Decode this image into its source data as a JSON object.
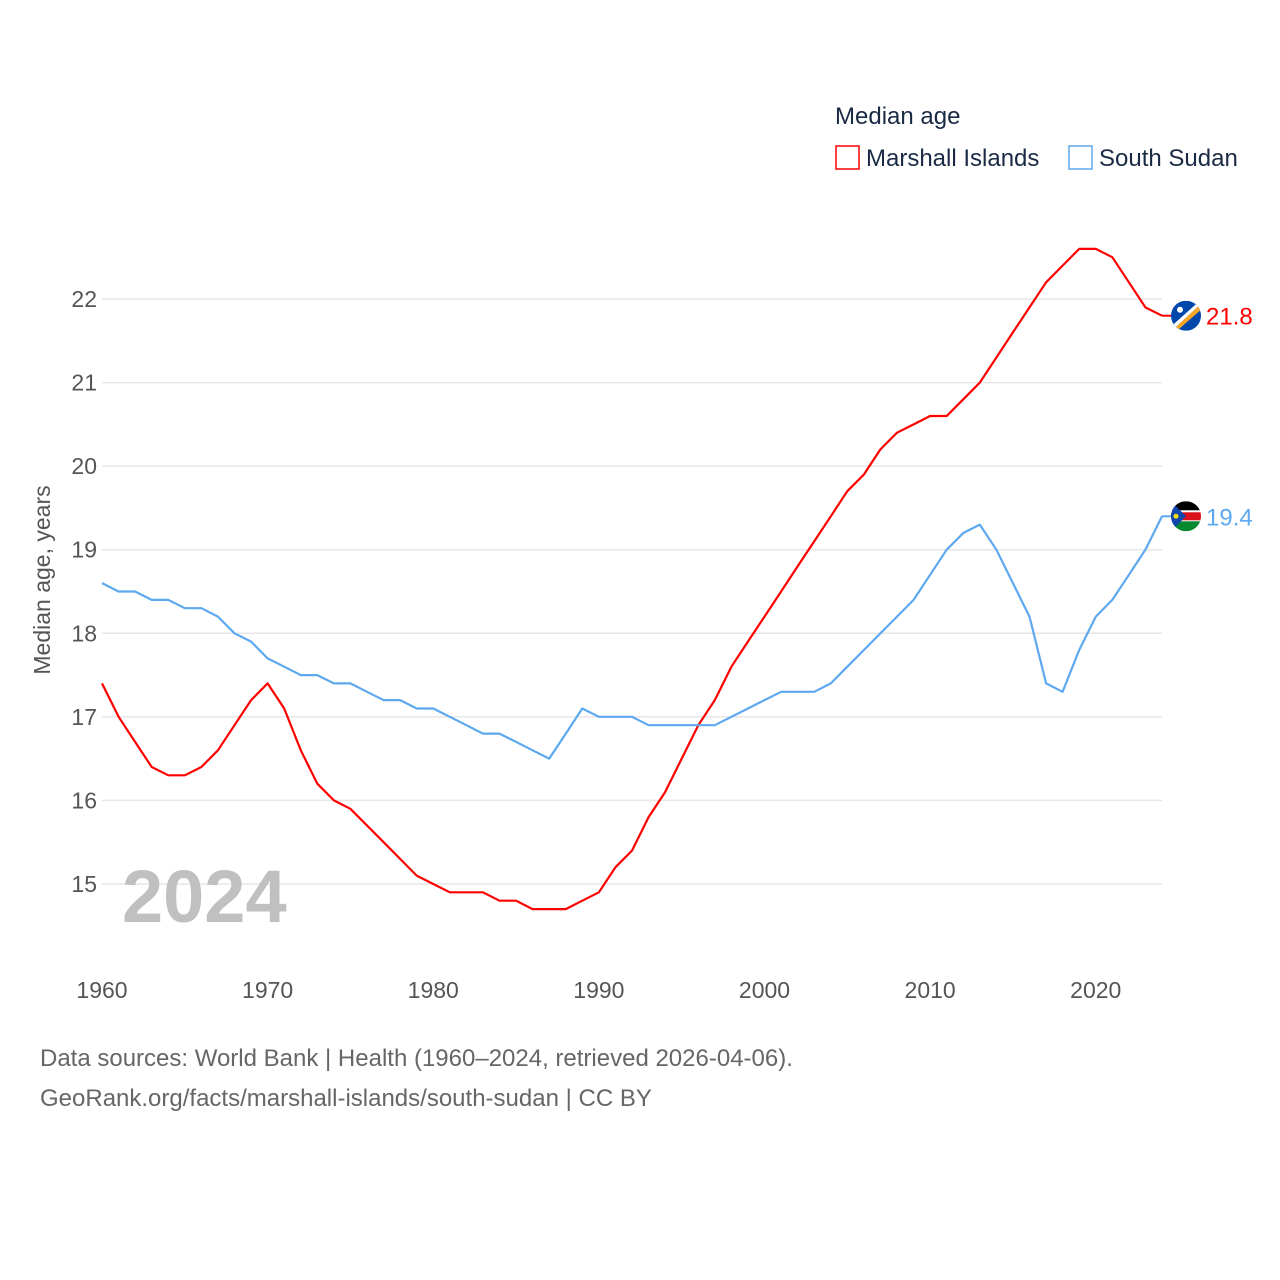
{
  "chart_data": {
    "type": "line",
    "title": "Median age",
    "xlabel": "",
    "ylabel": "Median age, years",
    "xlim": [
      1960,
      2024
    ],
    "ylim": [
      14.4,
      23
    ],
    "grid": true,
    "legend_placement": "top-right",
    "x_ticks": [
      "1960",
      "1970",
      "1980",
      "1990",
      "2000",
      "2010",
      "2020"
    ],
    "y_ticks": [
      "15",
      "16",
      "17",
      "18",
      "19",
      "20",
      "21",
      "22"
    ],
    "watermark_year": "2024",
    "x": [
      1960,
      1961,
      1962,
      1963,
      1964,
      1965,
      1966,
      1967,
      1968,
      1969,
      1970,
      1971,
      1972,
      1973,
      1974,
      1975,
      1976,
      1977,
      1978,
      1979,
      1980,
      1981,
      1982,
      1983,
      1984,
      1985,
      1986,
      1987,
      1988,
      1989,
      1990,
      1991,
      1992,
      1993,
      1994,
      1995,
      1996,
      1997,
      1998,
      1999,
      2000,
      2001,
      2002,
      2003,
      2004,
      2005,
      2006,
      2007,
      2008,
      2009,
      2010,
      2011,
      2012,
      2013,
      2014,
      2015,
      2016,
      2017,
      2018,
      2019,
      2020,
      2021,
      2022,
      2023,
      2024
    ],
    "series": [
      {
        "name": "Marshall Islands",
        "color": "#ff0000",
        "end_label": "21.8",
        "values": [
          17.4,
          17.0,
          16.7,
          16.4,
          16.3,
          16.3,
          16.4,
          16.6,
          16.9,
          17.2,
          17.4,
          17.1,
          16.6,
          16.2,
          16.0,
          15.9,
          15.7,
          15.5,
          15.3,
          15.1,
          15.0,
          14.9,
          14.9,
          14.9,
          14.8,
          14.8,
          14.7,
          14.7,
          14.7,
          14.8,
          14.9,
          15.2,
          15.4,
          15.8,
          16.1,
          16.5,
          16.9,
          17.2,
          17.6,
          17.9,
          18.2,
          18.5,
          18.8,
          19.1,
          19.4,
          19.7,
          19.9,
          20.2,
          20.4,
          20.5,
          20.6,
          20.6,
          20.8,
          21.0,
          21.3,
          21.6,
          21.9,
          22.2,
          22.4,
          22.6,
          22.6,
          22.5,
          22.2,
          21.9,
          21.8
        ]
      },
      {
        "name": "South Sudan",
        "color": "#5ea8ef",
        "end_label": "19.4",
        "values": [
          18.6,
          18.5,
          18.5,
          18.4,
          18.4,
          18.3,
          18.3,
          18.2,
          18.0,
          17.9,
          17.7,
          17.6,
          17.5,
          17.5,
          17.4,
          17.4,
          17.3,
          17.2,
          17.2,
          17.1,
          17.1,
          17.0,
          16.9,
          16.8,
          16.8,
          16.7,
          16.6,
          16.5,
          16.8,
          17.1,
          17.0,
          17.0,
          17.0,
          16.9,
          16.9,
          16.9,
          16.9,
          16.9,
          17.0,
          17.1,
          17.2,
          17.3,
          17.3,
          17.3,
          17.4,
          17.6,
          17.8,
          18.0,
          18.2,
          18.4,
          18.7,
          19.0,
          19.2,
          19.3,
          19.0,
          18.6,
          18.2,
          17.4,
          17.3,
          17.8,
          18.2,
          18.4,
          18.7,
          19.0,
          19.4
        ]
      }
    ]
  },
  "footer": {
    "line1": "Data sources: World Bank | Health (1960–2024, retrieved 2026-04-06).",
    "line2": "GeoRank.org/facts/marshall-islands/south-sudan | CC BY"
  }
}
